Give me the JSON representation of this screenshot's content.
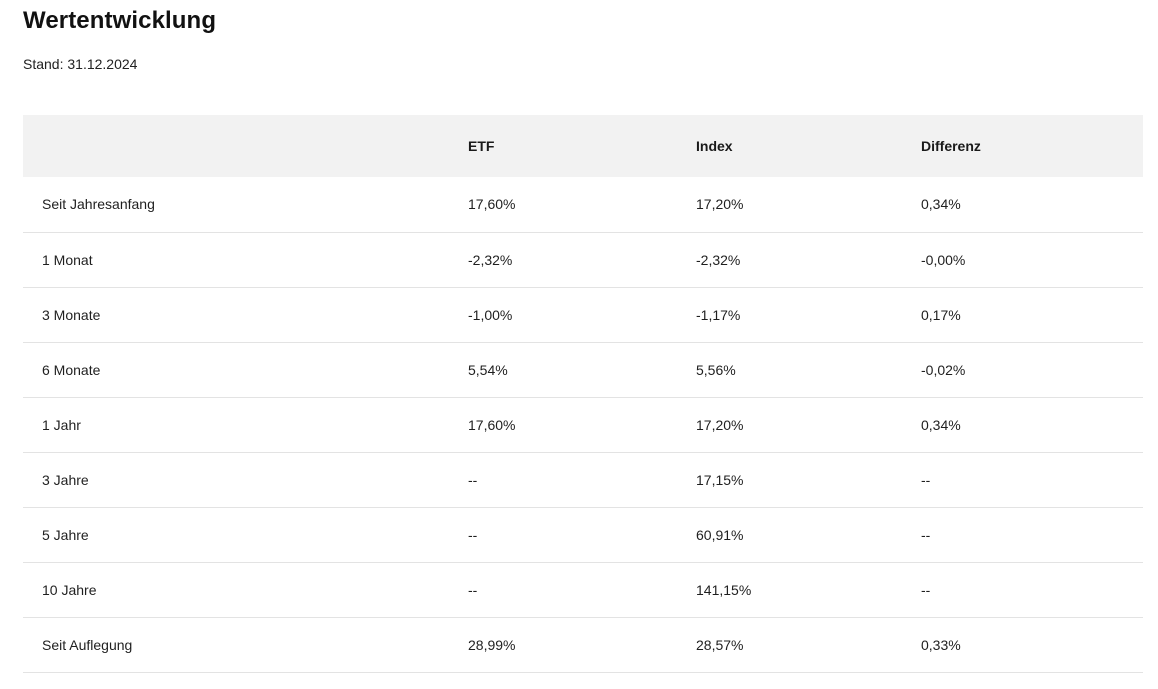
{
  "title": "Wertentwicklung",
  "stand": "Stand: 31.12.2024",
  "table": {
    "headers": {
      "label": "",
      "etf": "ETF",
      "index": "Index",
      "diff": "Differenz"
    },
    "rows": [
      {
        "label": "Seit Jahresanfang",
        "etf": "17,60%",
        "index": "17,20%",
        "diff": "0,34%"
      },
      {
        "label": "1 Monat",
        "etf": "-2,32%",
        "index": "-2,32%",
        "diff": "-0,00%"
      },
      {
        "label": "3 Monate",
        "etf": "-1,00%",
        "index": "-1,17%",
        "diff": "0,17%"
      },
      {
        "label": "6 Monate",
        "etf": "5,54%",
        "index": "5,56%",
        "diff": "-0,02%"
      },
      {
        "label": "1 Jahr",
        "etf": "17,60%",
        "index": "17,20%",
        "diff": "0,34%"
      },
      {
        "label": "3 Jahre",
        "etf": "--",
        "index": "17,15%",
        "diff": "--"
      },
      {
        "label": "5 Jahre",
        "etf": "--",
        "index": "60,91%",
        "diff": "--"
      },
      {
        "label": "10 Jahre",
        "etf": "--",
        "index": "141,15%",
        "diff": "--"
      },
      {
        "label": "Seit Auflegung",
        "etf": "28,99%",
        "index": "28,57%",
        "diff": "0,33%"
      }
    ]
  }
}
